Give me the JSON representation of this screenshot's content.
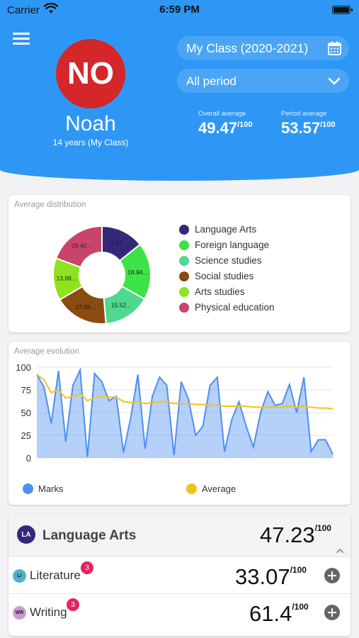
{
  "status_bar": {
    "carrier": "Carrier",
    "time": "6:59 PM"
  },
  "header": {
    "avatar_initials": "NO",
    "student_name": "Noah",
    "student_subtitle": "14 years (My Class)",
    "class_selector": "My Class (2020-2021)",
    "period_selector": "All period",
    "overall_label": "Overall average",
    "overall_value": "49.47",
    "period_label": "Period average",
    "period_value": "53.57",
    "out_of": "/100",
    "color": "#2e97f5"
  },
  "distribution_card": {
    "title": "Average distribution",
    "chart_data": {
      "type": "pie",
      "categories": [
        "Language Arts",
        "Foreign language",
        "Science studies",
        "Social studies",
        "Arts studies",
        "Physical education"
      ],
      "values": [
        14.24,
        18.94,
        15.52,
        17.89,
        13.99,
        19.42
      ],
      "slice_labels": [
        "14.24...",
        "18.94...",
        "15.52...",
        "17.89...",
        "13.99...",
        "19.42..."
      ],
      "colors": [
        "#33287a",
        "#3de248",
        "#4fd98e",
        "#8b4a10",
        "#8fe21e",
        "#c8446a"
      ],
      "legend": "right"
    }
  },
  "evolution_card": {
    "title": "Average evolution",
    "chart_data": {
      "type": "area",
      "ylim": [
        0,
        100
      ],
      "yticks": [
        "100",
        "75",
        "50",
        "25",
        "0"
      ],
      "grid": true,
      "legend": "bottom",
      "series": [
        {
          "name": "Marks",
          "color": "#4f8ff0",
          "values": [
            92,
            78,
            38,
            96,
            18,
            80,
            97,
            1,
            93,
            84,
            63,
            68,
            6,
            44,
            92,
            10,
            68,
            89,
            80,
            3,
            84,
            65,
            25,
            35,
            80,
            89,
            7,
            42,
            62,
            35,
            12,
            50,
            73,
            58,
            60,
            81,
            50,
            89,
            7,
            20,
            20,
            4
          ]
        },
        {
          "name": "Average",
          "color": "#f2c318",
          "values": [
            92,
            86,
            72,
            75,
            66,
            68,
            71,
            63,
            66,
            68,
            67,
            67,
            62,
            61,
            62,
            60,
            61,
            62,
            62,
            60,
            60,
            60,
            59,
            59,
            58,
            58,
            57,
            57,
            57,
            57,
            56,
            56,
            56,
            56,
            56,
            57,
            56,
            57,
            56,
            55,
            55,
            54
          ]
        }
      ]
    }
  },
  "subject_card": {
    "initials": "LA",
    "name": "Language Arts",
    "score": "47.23",
    "out_of": "/100",
    "badge_color": "#33287a",
    "rows": [
      {
        "initials": "LI",
        "name": "Literature",
        "count": "3",
        "score": "33.07",
        "badge_color": "#4fb1cf"
      },
      {
        "initials": "WR",
        "name": "Writing",
        "count": "3",
        "score": "61.4",
        "badge_color": "#c99bd6"
      }
    ]
  }
}
